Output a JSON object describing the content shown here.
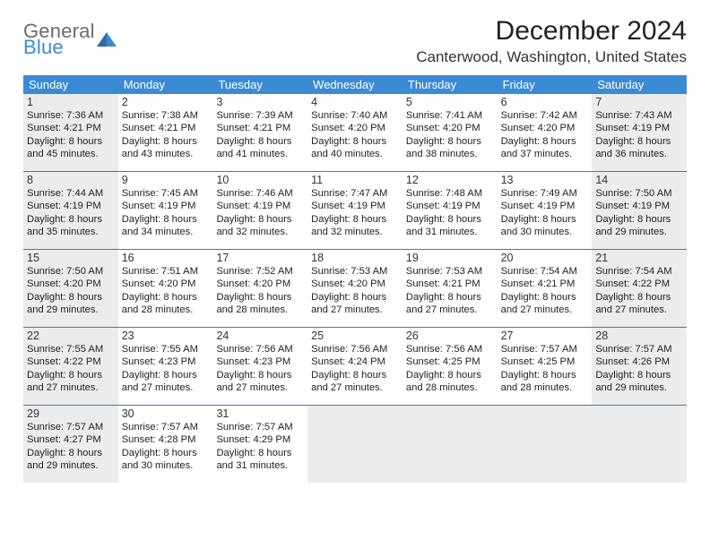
{
  "brand": {
    "line1": "General",
    "line2": "Blue"
  },
  "title": "December 2024",
  "location": "Canterwood, Washington, United States",
  "colors": {
    "header_bar": "#3b8bd4",
    "rule": "#4a78a5",
    "shaded": "#ececec",
    "logo_gray": "#6b6b6b",
    "logo_blue": "#3b8bd4"
  },
  "weekdays": [
    "Sunday",
    "Monday",
    "Tuesday",
    "Wednesday",
    "Thursday",
    "Friday",
    "Saturday"
  ],
  "days": [
    {
      "n": "1",
      "shaded": true,
      "sr": "Sunrise: 7:36 AM",
      "ss": "Sunset: 4:21 PM",
      "d1": "Daylight: 8 hours",
      "d2": "and 45 minutes."
    },
    {
      "n": "2",
      "shaded": false,
      "sr": "Sunrise: 7:38 AM",
      "ss": "Sunset: 4:21 PM",
      "d1": "Daylight: 8 hours",
      "d2": "and 43 minutes."
    },
    {
      "n": "3",
      "shaded": false,
      "sr": "Sunrise: 7:39 AM",
      "ss": "Sunset: 4:21 PM",
      "d1": "Daylight: 8 hours",
      "d2": "and 41 minutes."
    },
    {
      "n": "4",
      "shaded": false,
      "sr": "Sunrise: 7:40 AM",
      "ss": "Sunset: 4:20 PM",
      "d1": "Daylight: 8 hours",
      "d2": "and 40 minutes."
    },
    {
      "n": "5",
      "shaded": false,
      "sr": "Sunrise: 7:41 AM",
      "ss": "Sunset: 4:20 PM",
      "d1": "Daylight: 8 hours",
      "d2": "and 38 minutes."
    },
    {
      "n": "6",
      "shaded": false,
      "sr": "Sunrise: 7:42 AM",
      "ss": "Sunset: 4:20 PM",
      "d1": "Daylight: 8 hours",
      "d2": "and 37 minutes."
    },
    {
      "n": "7",
      "shaded": true,
      "sr": "Sunrise: 7:43 AM",
      "ss": "Sunset: 4:19 PM",
      "d1": "Daylight: 8 hours",
      "d2": "and 36 minutes."
    },
    {
      "n": "8",
      "shaded": true,
      "sr": "Sunrise: 7:44 AM",
      "ss": "Sunset: 4:19 PM",
      "d1": "Daylight: 8 hours",
      "d2": "and 35 minutes."
    },
    {
      "n": "9",
      "shaded": false,
      "sr": "Sunrise: 7:45 AM",
      "ss": "Sunset: 4:19 PM",
      "d1": "Daylight: 8 hours",
      "d2": "and 34 minutes."
    },
    {
      "n": "10",
      "shaded": false,
      "sr": "Sunrise: 7:46 AM",
      "ss": "Sunset: 4:19 PM",
      "d1": "Daylight: 8 hours",
      "d2": "and 32 minutes."
    },
    {
      "n": "11",
      "shaded": false,
      "sr": "Sunrise: 7:47 AM",
      "ss": "Sunset: 4:19 PM",
      "d1": "Daylight: 8 hours",
      "d2": "and 32 minutes."
    },
    {
      "n": "12",
      "shaded": false,
      "sr": "Sunrise: 7:48 AM",
      "ss": "Sunset: 4:19 PM",
      "d1": "Daylight: 8 hours",
      "d2": "and 31 minutes."
    },
    {
      "n": "13",
      "shaded": false,
      "sr": "Sunrise: 7:49 AM",
      "ss": "Sunset: 4:19 PM",
      "d1": "Daylight: 8 hours",
      "d2": "and 30 minutes."
    },
    {
      "n": "14",
      "shaded": true,
      "sr": "Sunrise: 7:50 AM",
      "ss": "Sunset: 4:19 PM",
      "d1": "Daylight: 8 hours",
      "d2": "and 29 minutes."
    },
    {
      "n": "15",
      "shaded": true,
      "sr": "Sunrise: 7:50 AM",
      "ss": "Sunset: 4:20 PM",
      "d1": "Daylight: 8 hours",
      "d2": "and 29 minutes."
    },
    {
      "n": "16",
      "shaded": false,
      "sr": "Sunrise: 7:51 AM",
      "ss": "Sunset: 4:20 PM",
      "d1": "Daylight: 8 hours",
      "d2": "and 28 minutes."
    },
    {
      "n": "17",
      "shaded": false,
      "sr": "Sunrise: 7:52 AM",
      "ss": "Sunset: 4:20 PM",
      "d1": "Daylight: 8 hours",
      "d2": "and 28 minutes."
    },
    {
      "n": "18",
      "shaded": false,
      "sr": "Sunrise: 7:53 AM",
      "ss": "Sunset: 4:20 PM",
      "d1": "Daylight: 8 hours",
      "d2": "and 27 minutes."
    },
    {
      "n": "19",
      "shaded": false,
      "sr": "Sunrise: 7:53 AM",
      "ss": "Sunset: 4:21 PM",
      "d1": "Daylight: 8 hours",
      "d2": "and 27 minutes."
    },
    {
      "n": "20",
      "shaded": false,
      "sr": "Sunrise: 7:54 AM",
      "ss": "Sunset: 4:21 PM",
      "d1": "Daylight: 8 hours",
      "d2": "and 27 minutes."
    },
    {
      "n": "21",
      "shaded": true,
      "sr": "Sunrise: 7:54 AM",
      "ss": "Sunset: 4:22 PM",
      "d1": "Daylight: 8 hours",
      "d2": "and 27 minutes."
    },
    {
      "n": "22",
      "shaded": true,
      "sr": "Sunrise: 7:55 AM",
      "ss": "Sunset: 4:22 PM",
      "d1": "Daylight: 8 hours",
      "d2": "and 27 minutes."
    },
    {
      "n": "23",
      "shaded": false,
      "sr": "Sunrise: 7:55 AM",
      "ss": "Sunset: 4:23 PM",
      "d1": "Daylight: 8 hours",
      "d2": "and 27 minutes."
    },
    {
      "n": "24",
      "shaded": false,
      "sr": "Sunrise: 7:56 AM",
      "ss": "Sunset: 4:23 PM",
      "d1": "Daylight: 8 hours",
      "d2": "and 27 minutes."
    },
    {
      "n": "25",
      "shaded": false,
      "sr": "Sunrise: 7:56 AM",
      "ss": "Sunset: 4:24 PM",
      "d1": "Daylight: 8 hours",
      "d2": "and 27 minutes."
    },
    {
      "n": "26",
      "shaded": false,
      "sr": "Sunrise: 7:56 AM",
      "ss": "Sunset: 4:25 PM",
      "d1": "Daylight: 8 hours",
      "d2": "and 28 minutes."
    },
    {
      "n": "27",
      "shaded": false,
      "sr": "Sunrise: 7:57 AM",
      "ss": "Sunset: 4:25 PM",
      "d1": "Daylight: 8 hours",
      "d2": "and 28 minutes."
    },
    {
      "n": "28",
      "shaded": true,
      "sr": "Sunrise: 7:57 AM",
      "ss": "Sunset: 4:26 PM",
      "d1": "Daylight: 8 hours",
      "d2": "and 29 minutes."
    },
    {
      "n": "29",
      "shaded": true,
      "sr": "Sunrise: 7:57 AM",
      "ss": "Sunset: 4:27 PM",
      "d1": "Daylight: 8 hours",
      "d2": "and 29 minutes."
    },
    {
      "n": "30",
      "shaded": false,
      "sr": "Sunrise: 7:57 AM",
      "ss": "Sunset: 4:28 PM",
      "d1": "Daylight: 8 hours",
      "d2": "and 30 minutes."
    },
    {
      "n": "31",
      "shaded": false,
      "sr": "Sunrise: 7:57 AM",
      "ss": "Sunset: 4:29 PM",
      "d1": "Daylight: 8 hours",
      "d2": "and 31 minutes."
    },
    {
      "empty": true,
      "shaded": true
    },
    {
      "empty": true,
      "shaded": true
    },
    {
      "empty": true,
      "shaded": true
    },
    {
      "empty": true,
      "shaded": true
    }
  ]
}
